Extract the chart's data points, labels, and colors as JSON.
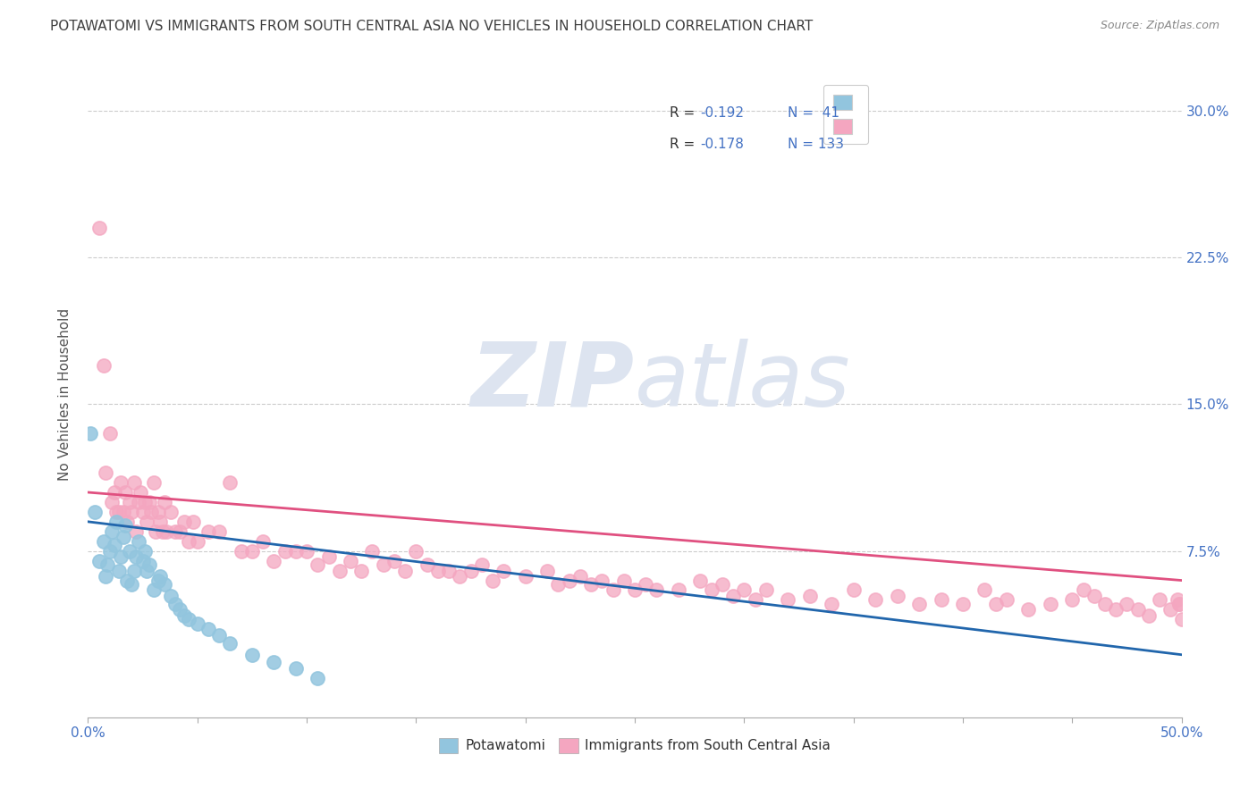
{
  "title": "POTAWATOMI VS IMMIGRANTS FROM SOUTH CENTRAL ASIA NO VEHICLES IN HOUSEHOLD CORRELATION CHART",
  "source_text": "Source: ZipAtlas.com",
  "ylabel": "No Vehicles in Household",
  "xlabel": "",
  "xlim": [
    0.0,
    0.5
  ],
  "ylim": [
    -0.01,
    0.32
  ],
  "color_blue": "#92c5de",
  "color_pink": "#f4a6c0",
  "line_color_blue": "#2166ac",
  "line_color_pink": "#e05080",
  "watermark_zip": "ZIP",
  "watermark_atlas": "atlas",
  "background_color": "#ffffff",
  "title_color": "#404040",
  "title_fontsize": 11,
  "axis_label_color": "#4472c4",
  "grid_color": "#cccccc",
  "legend_text_blue": "#4472c4",
  "legend_text_dark": "#333333",
  "blue_x": [
    0.001,
    0.003,
    0.005,
    0.007,
    0.008,
    0.009,
    0.01,
    0.011,
    0.012,
    0.013,
    0.014,
    0.015,
    0.016,
    0.017,
    0.018,
    0.019,
    0.02,
    0.021,
    0.022,
    0.023,
    0.025,
    0.026,
    0.027,
    0.028,
    0.03,
    0.032,
    0.033,
    0.035,
    0.038,
    0.04,
    0.042,
    0.044,
    0.046,
    0.05,
    0.055,
    0.06,
    0.065,
    0.075,
    0.085,
    0.095,
    0.105
  ],
  "blue_y": [
    0.135,
    0.095,
    0.07,
    0.08,
    0.062,
    0.068,
    0.075,
    0.085,
    0.078,
    0.09,
    0.065,
    0.072,
    0.082,
    0.088,
    0.06,
    0.075,
    0.058,
    0.065,
    0.072,
    0.08,
    0.07,
    0.075,
    0.065,
    0.068,
    0.055,
    0.06,
    0.062,
    0.058,
    0.052,
    0.048,
    0.045,
    0.042,
    0.04,
    0.038,
    0.035,
    0.032,
    0.028,
    0.022,
    0.018,
    0.015,
    0.01
  ],
  "pink_x": [
    0.005,
    0.007,
    0.008,
    0.01,
    0.011,
    0.012,
    0.013,
    0.014,
    0.015,
    0.016,
    0.017,
    0.018,
    0.019,
    0.02,
    0.021,
    0.022,
    0.023,
    0.024,
    0.025,
    0.026,
    0.027,
    0.028,
    0.029,
    0.03,
    0.031,
    0.032,
    0.033,
    0.034,
    0.035,
    0.036,
    0.038,
    0.04,
    0.042,
    0.044,
    0.046,
    0.048,
    0.05,
    0.055,
    0.06,
    0.065,
    0.07,
    0.075,
    0.08,
    0.085,
    0.09,
    0.095,
    0.1,
    0.105,
    0.11,
    0.115,
    0.12,
    0.125,
    0.13,
    0.135,
    0.14,
    0.145,
    0.15,
    0.155,
    0.16,
    0.165,
    0.17,
    0.175,
    0.18,
    0.185,
    0.19,
    0.2,
    0.21,
    0.215,
    0.22,
    0.225,
    0.23,
    0.235,
    0.24,
    0.245,
    0.25,
    0.255,
    0.26,
    0.27,
    0.28,
    0.285,
    0.29,
    0.295,
    0.3,
    0.305,
    0.31,
    0.32,
    0.33,
    0.34,
    0.35,
    0.36,
    0.37,
    0.38,
    0.39,
    0.4,
    0.41,
    0.415,
    0.42,
    0.43,
    0.44,
    0.45,
    0.455,
    0.46,
    0.465,
    0.47,
    0.475,
    0.48,
    0.485,
    0.49,
    0.495,
    0.498,
    0.499,
    0.499,
    0.5
  ],
  "pink_y": [
    0.24,
    0.17,
    0.115,
    0.135,
    0.1,
    0.105,
    0.095,
    0.095,
    0.11,
    0.095,
    0.105,
    0.09,
    0.1,
    0.095,
    0.11,
    0.085,
    0.1,
    0.105,
    0.095,
    0.1,
    0.09,
    0.1,
    0.095,
    0.11,
    0.085,
    0.095,
    0.09,
    0.085,
    0.1,
    0.085,
    0.095,
    0.085,
    0.085,
    0.09,
    0.08,
    0.09,
    0.08,
    0.085,
    0.085,
    0.11,
    0.075,
    0.075,
    0.08,
    0.07,
    0.075,
    0.075,
    0.075,
    0.068,
    0.072,
    0.065,
    0.07,
    0.065,
    0.075,
    0.068,
    0.07,
    0.065,
    0.075,
    0.068,
    0.065,
    0.065,
    0.062,
    0.065,
    0.068,
    0.06,
    0.065,
    0.062,
    0.065,
    0.058,
    0.06,
    0.062,
    0.058,
    0.06,
    0.055,
    0.06,
    0.055,
    0.058,
    0.055,
    0.055,
    0.06,
    0.055,
    0.058,
    0.052,
    0.055,
    0.05,
    0.055,
    0.05,
    0.052,
    0.048,
    0.055,
    0.05,
    0.052,
    0.048,
    0.05,
    0.048,
    0.055,
    0.048,
    0.05,
    0.045,
    0.048,
    0.05,
    0.055,
    0.052,
    0.048,
    0.045,
    0.048,
    0.045,
    0.042,
    0.05,
    0.045,
    0.05,
    0.048,
    0.048,
    0.04
  ],
  "blue_trend_x": [
    0.0,
    0.5
  ],
  "blue_trend_y": [
    0.09,
    0.022
  ],
  "pink_trend_x": [
    0.0,
    0.5
  ],
  "pink_trend_y": [
    0.105,
    0.06
  ]
}
